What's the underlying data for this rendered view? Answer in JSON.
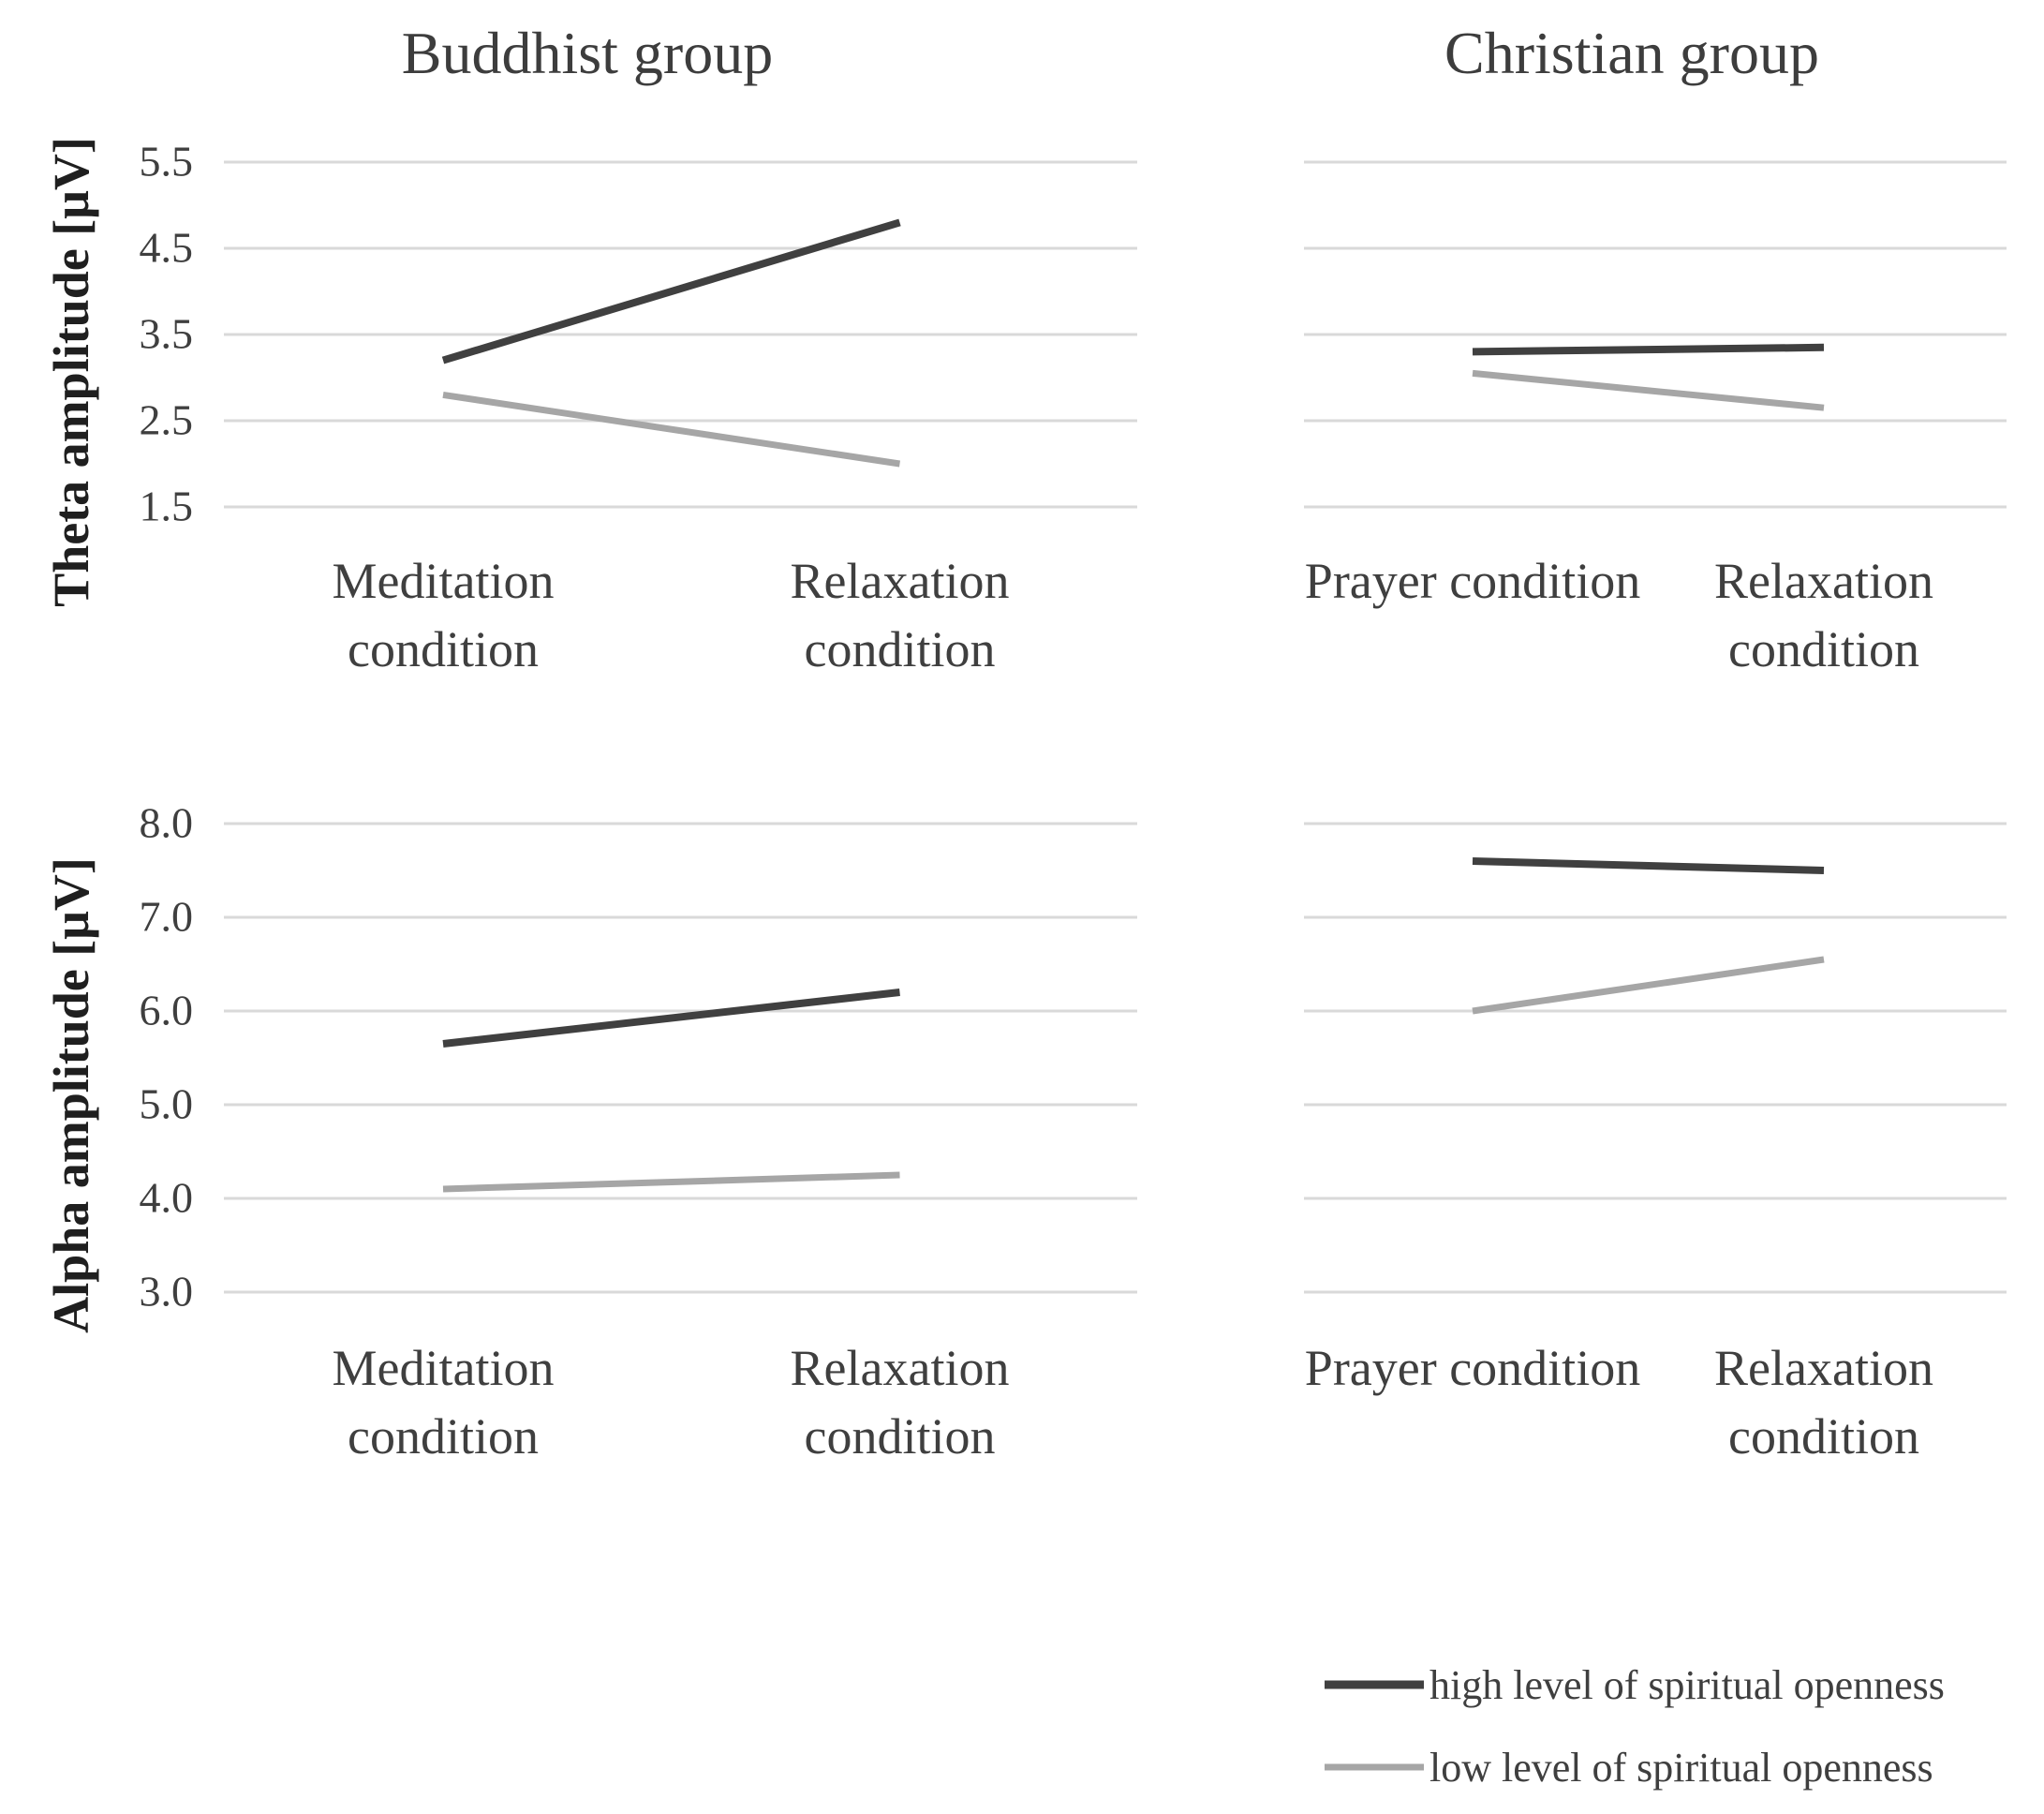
{
  "figure": {
    "background": "#ffffff"
  },
  "colors": {
    "high_series": "#404040",
    "low_series": "#a6a6a6",
    "gridline": "#d9d9d9",
    "title_text": "#3d3d3d",
    "axis_title_text": "#1f1f1f",
    "label_text": "#3f3f3f"
  },
  "legend": {
    "position": "bottom-right",
    "items": [
      {
        "label": "high level of spiritual openness",
        "color": "#404040"
      },
      {
        "label": "low level of spiritual openness",
        "color": "#a6a6a6"
      }
    ]
  },
  "chart_data": [
    {
      "id": "theta-buddhist",
      "type": "line",
      "title": "Buddhist group",
      "ylabel": "Theta amplitude [μV]",
      "categories": [
        "Meditation condition",
        "Relaxation condition"
      ],
      "series": [
        {
          "name": "high level of spiritual openness",
          "values": [
            3.2,
            4.8
          ]
        },
        {
          "name": "low level of spiritual openness",
          "values": [
            2.8,
            2.0
          ]
        }
      ],
      "ylim": [
        1.5,
        5.5
      ],
      "ytick_labels": [
        "5.5",
        "4.5",
        "3.5",
        "2.5",
        "1.5"
      ],
      "ytick_labels_visible": true,
      "grid": true,
      "legend_position": "none"
    },
    {
      "id": "theta-christian",
      "type": "line",
      "title": "Christian group",
      "ylabel": "",
      "categories": [
        "Prayer condition",
        "Relaxation condition"
      ],
      "series": [
        {
          "name": "high level of spiritual openness",
          "values": [
            3.3,
            3.35
          ]
        },
        {
          "name": "low level of spiritual openness",
          "values": [
            3.05,
            2.65
          ]
        }
      ],
      "ylim": [
        1.5,
        5.5
      ],
      "ytick_labels": [
        "5.5",
        "4.5",
        "3.5",
        "2.5",
        "1.5"
      ],
      "ytick_labels_visible": false,
      "grid": true,
      "legend_position": "none"
    },
    {
      "id": "alpha-buddhist",
      "type": "line",
      "title": "",
      "ylabel": "Alpha amplitude [μV]",
      "categories": [
        "Meditation condition",
        "Relaxation condition"
      ],
      "series": [
        {
          "name": "high level of spiritual openness",
          "values": [
            5.65,
            6.2
          ]
        },
        {
          "name": "low level of spiritual openness",
          "values": [
            4.1,
            4.25
          ]
        }
      ],
      "ylim": [
        3.0,
        8.0
      ],
      "ytick_labels": [
        "8.0",
        "7.0",
        "6.0",
        "5.0",
        "4.0",
        "3.0"
      ],
      "ytick_labels_visible": true,
      "grid": true,
      "legend_position": "none"
    },
    {
      "id": "alpha-christian",
      "type": "line",
      "title": "",
      "ylabel": "",
      "categories": [
        "Prayer condition",
        "Relaxation condition"
      ],
      "series": [
        {
          "name": "high level of spiritual openness",
          "values": [
            7.6,
            7.5
          ]
        },
        {
          "name": "low level of spiritual openness",
          "values": [
            6.0,
            6.55
          ]
        }
      ],
      "ylim": [
        3.0,
        8.0
      ],
      "ytick_labels": [
        "8.0",
        "7.0",
        "6.0",
        "5.0",
        "4.0",
        "3.0"
      ],
      "ytick_labels_visible": false,
      "grid": true,
      "legend_position": "none"
    }
  ]
}
